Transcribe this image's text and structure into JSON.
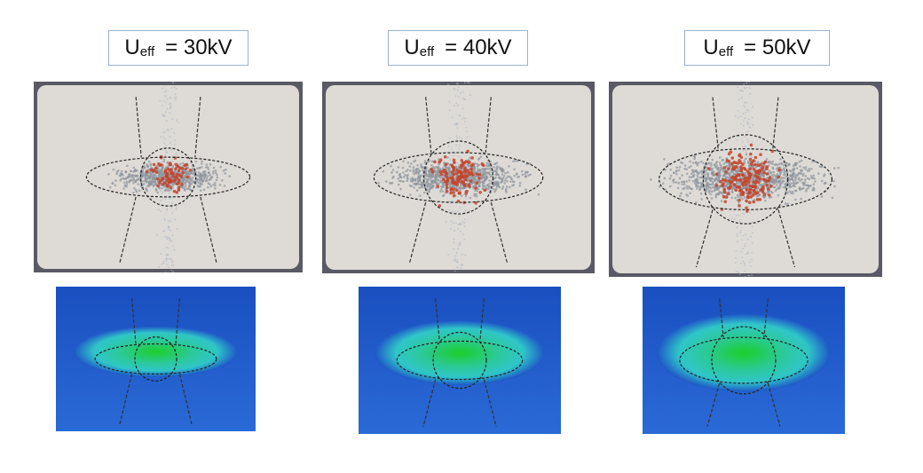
{
  "panels": [
    {
      "symbol": "U",
      "subscript": "eff",
      "value": "= 30kV"
    },
    {
      "symbol": "U",
      "subscript": "eff",
      "value": "= 40kV"
    },
    {
      "symbol": "U",
      "subscript": "eff",
      "value": "= 50kV"
    }
  ],
  "colors": {
    "photo_background": "#dedbd6",
    "photo_frame": "#5a5a66",
    "dot_gray": "#8e959e",
    "dot_red": "#c4442c",
    "sim_blue": "#1f56c8",
    "sim_cyan": "#2fc6c8",
    "sim_green": "#1ccf2a"
  },
  "icons": [
    "dashed-ellipse-overlay",
    "dashed-circle-overlay"
  ]
}
